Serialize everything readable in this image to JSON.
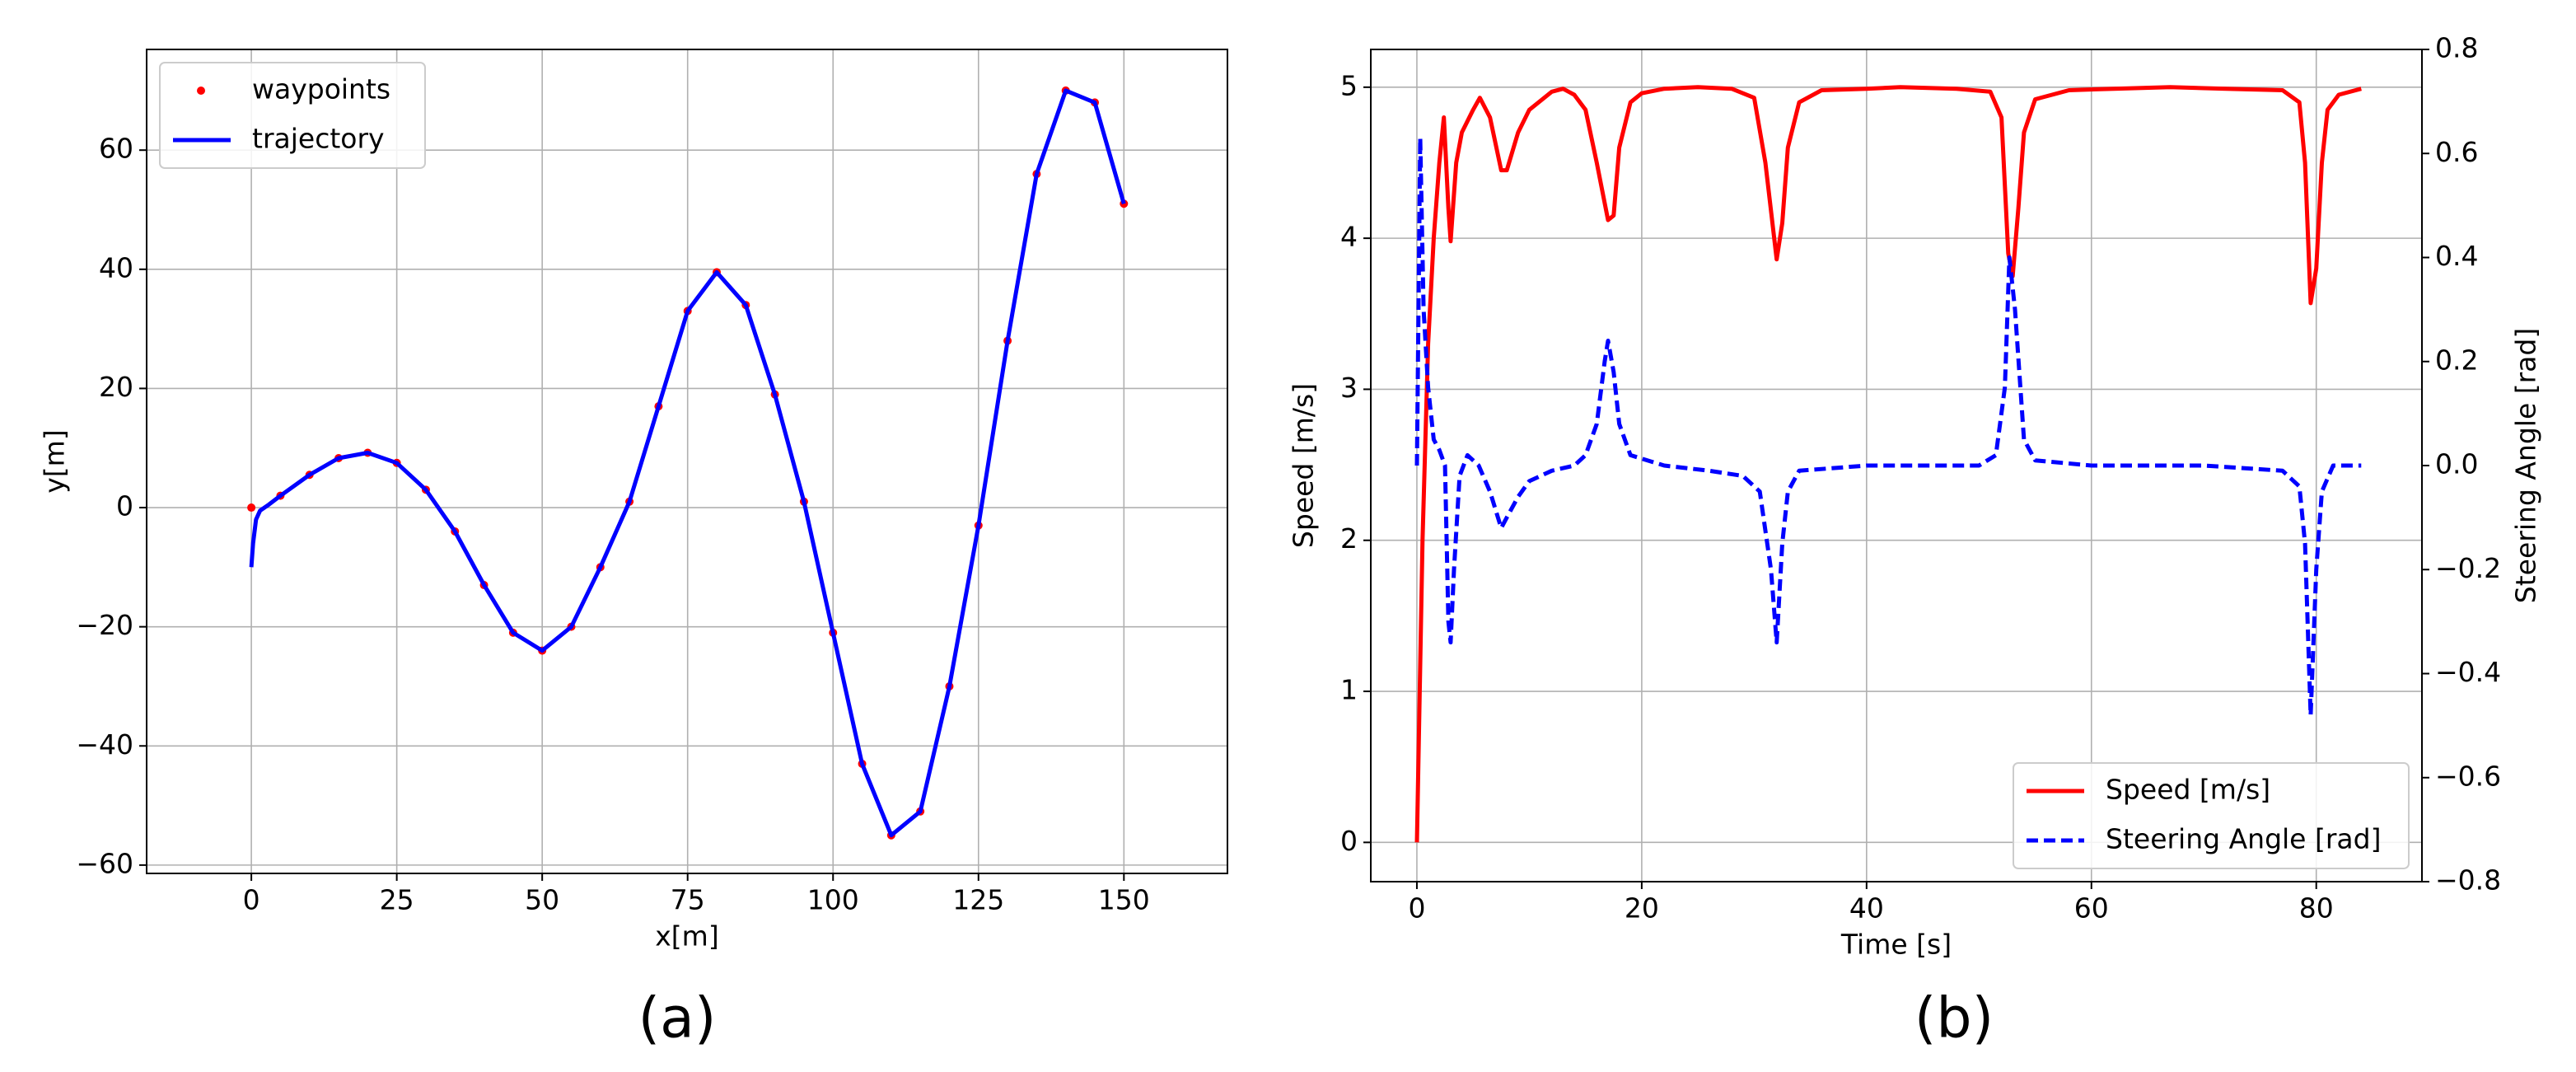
{
  "chart_data": [
    {
      "type": "line",
      "caption": "(a)",
      "x_label": "x[m]",
      "y_label": "y[m]",
      "xlim": [
        -18,
        167.8
      ],
      "ylim": [
        -61.4,
        76.9
      ],
      "xticks": [
        0,
        25,
        50,
        75,
        100,
        125,
        150
      ],
      "yticks": [
        {
          "value": -60,
          "label": "−60"
        },
        {
          "value": -40,
          "label": "−40"
        },
        {
          "value": -20,
          "label": "−20"
        },
        0,
        20,
        40,
        60
      ],
      "grid": true,
      "legend": "upper left",
      "series": [
        {
          "name": "waypoints",
          "color": "#ff0000",
          "style": "points",
          "x": [
            0,
            5,
            10,
            15,
            20,
            25,
            30,
            35,
            40,
            45,
            50,
            55,
            60,
            65,
            70,
            75,
            80,
            85,
            90,
            95,
            100,
            105,
            110,
            115,
            120,
            125,
            130,
            135,
            140,
            145,
            150
          ],
          "values": [
            0,
            2,
            5.5,
            8.3,
            9.2,
            7.5,
            3,
            -4,
            -13,
            -21,
            -24,
            -20,
            -10,
            1,
            17,
            33,
            39.5,
            34,
            19,
            1,
            -21,
            -43,
            -55,
            -51,
            -30,
            -3,
            28,
            56,
            70,
            68,
            51
          ]
        },
        {
          "name": "trajectory",
          "color": "#0000ff",
          "style": "solid",
          "x": [
            0,
            0.3,
            0.8,
            1.5,
            3,
            5,
            10,
            15,
            20,
            25,
            30,
            35,
            40,
            45,
            50,
            55,
            60,
            65,
            70,
            75,
            80,
            85,
            90,
            95,
            100,
            105,
            110,
            115,
            120,
            125,
            130,
            135,
            140,
            145,
            150
          ],
          "values": [
            -10,
            -6,
            -2,
            -0.5,
            0.5,
            2,
            5.5,
            8.3,
            9.2,
            7.5,
            3,
            -4,
            -13,
            -21,
            -24,
            -20,
            -10,
            1,
            17,
            33,
            39.5,
            34,
            19,
            1,
            -21,
            -43,
            -55,
            -51,
            -30,
            -3,
            28,
            56,
            70,
            68,
            51
          ]
        }
      ]
    },
    {
      "type": "line",
      "caption": "(b)",
      "x_label": "Time [s]",
      "y_label": "Speed [m/s]",
      "y2_label": "Steering Angle [rad]",
      "xlim": [
        -4.1,
        89.4
      ],
      "ylim": [
        -0.26,
        5.25
      ],
      "y2lim": [
        -0.8,
        0.8
      ],
      "xticks": [
        0,
        20,
        40,
        60,
        80
      ],
      "yticks": [
        0,
        1,
        2,
        3,
        4,
        5
      ],
      "y2ticks": [
        {
          "value": -0.8,
          "label": "−0.8"
        },
        {
          "value": -0.6,
          "label": "−0.6"
        },
        {
          "value": -0.4,
          "label": "−0.4"
        },
        {
          "value": -0.2,
          "label": "−0.2"
        },
        {
          "value": 0,
          "label": "0.0"
        },
        0.2,
        0.4,
        0.6,
        0.8
      ],
      "grid": true,
      "legend": "lower right",
      "series": [
        {
          "name": "Speed [m/s]",
          "color": "#ff0000",
          "style": "solid",
          "x": [
            0,
            0.5,
            1,
            1.5,
            2,
            2.4,
            2.8,
            3,
            3.5,
            4,
            5,
            5.6,
            6.5,
            7.5,
            8,
            9,
            10,
            12,
            13,
            14,
            15,
            16,
            17,
            17.5,
            18,
            19,
            20,
            22,
            25,
            28,
            30,
            31,
            32,
            32.5,
            33,
            34,
            36,
            40,
            43,
            48,
            51,
            52,
            52.6,
            53,
            53.5,
            54,
            55,
            58,
            62,
            67,
            72,
            77,
            78.5,
            79,
            79.5,
            80,
            80.5,
            81,
            82,
            84
          ],
          "values": [
            0,
            2,
            3.3,
            4,
            4.5,
            4.8,
            4.2,
            3.98,
            4.5,
            4.7,
            4.85,
            4.93,
            4.8,
            4.45,
            4.45,
            4.7,
            4.85,
            4.97,
            4.99,
            4.95,
            4.85,
            4.5,
            4.12,
            4.15,
            4.6,
            4.9,
            4.96,
            4.99,
            5,
            4.99,
            4.93,
            4.5,
            3.86,
            4.1,
            4.6,
            4.9,
            4.98,
            4.99,
            5,
            4.99,
            4.97,
            4.8,
            3.9,
            3.75,
            4.2,
            4.7,
            4.92,
            4.98,
            4.99,
            5,
            4.99,
            4.98,
            4.9,
            4.5,
            3.57,
            3.8,
            4.5,
            4.85,
            4.95,
            4.99
          ]
        },
        {
          "name": "Steering Angle [rad]",
          "color": "#0000ff",
          "style": "dashed",
          "axis": "y2",
          "x": [
            0,
            0.3,
            0.6,
            1,
            1.5,
            2,
            2.5,
            2.8,
            3,
            3.3,
            3.8,
            4.5,
            5.5,
            6.5,
            7.5,
            8,
            9,
            10,
            12,
            14,
            15,
            16,
            16.7,
            17,
            17.5,
            18,
            19,
            22,
            26,
            29,
            30.5,
            31.5,
            32,
            32.5,
            33,
            34,
            40,
            50,
            51.5,
            52.3,
            52.7,
            53.2,
            54,
            55,
            60,
            70,
            77,
            78.5,
            79,
            79.5,
            80,
            80.5,
            81.5,
            84
          ],
          "values": [
            0,
            0.63,
            0.3,
            0.15,
            0.05,
            0.03,
            0,
            -0.3,
            -0.34,
            -0.2,
            -0.02,
            0.02,
            0,
            -0.05,
            -0.12,
            -0.1,
            -0.06,
            -0.03,
            -0.01,
            0,
            0.02,
            0.08,
            0.2,
            0.24,
            0.18,
            0.08,
            0.02,
            0,
            -0.01,
            -0.02,
            -0.05,
            -0.2,
            -0.34,
            -0.15,
            -0.05,
            -0.01,
            0,
            0,
            0.02,
            0.15,
            0.4,
            0.3,
            0.05,
            0.01,
            0,
            0,
            -0.01,
            -0.04,
            -0.15,
            -0.48,
            -0.2,
            -0.05,
            0,
            0
          ]
        }
      ]
    }
  ]
}
